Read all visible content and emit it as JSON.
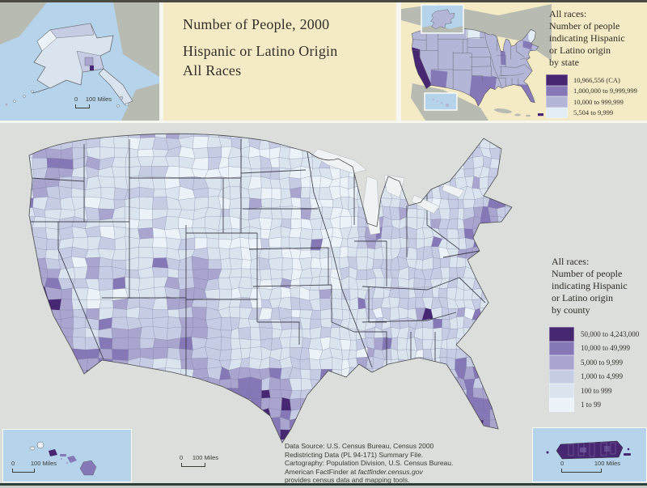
{
  "title": {
    "line1": "Number of People, 2000",
    "line2": "Hispanic or Latino Origin",
    "line3": "All Races"
  },
  "state_legend": {
    "title": "All races:\nNumber of people\nindicating Hispanic\nor Latino origin\nby state",
    "items": [
      {
        "label": "10,966,556 (CA)",
        "color": "#472672"
      },
      {
        "label": "1,000,000 to 9,999,999",
        "color": "#8678b6"
      },
      {
        "label": "10,000 to 999,999",
        "color": "#b4b6d7"
      },
      {
        "label": "5,504 to 9,999",
        "color": "#e2edf5"
      }
    ]
  },
  "county_legend": {
    "title": "All races:\nNumber of people\nindicating Hispanic\nor Latino origin\nby county",
    "items": [
      {
        "label": "50,000 to 4,243,000",
        "color": "#472672"
      },
      {
        "label": "10,000 to 49,999",
        "color": "#8678b6"
      },
      {
        "label": "5,000 to 9,999",
        "color": "#a9a5ce"
      },
      {
        "label": "1,000 to 4,999",
        "color": "#c5cce3"
      },
      {
        "label": "100 to 999",
        "color": "#dae4ef"
      },
      {
        "label": "1 to 99",
        "color": "#ecf3f8"
      }
    ]
  },
  "scale": {
    "zero": "0",
    "miles": "100 Miles"
  },
  "source": {
    "line1": "Data Source: U.S. Census Bureau, Census 2000",
    "line2": "Redistricting Data (PL 94-171) Summary File.",
    "line3": "Cartography: Population Division, U.S. Census Bureau.",
    "line4_pre": "American FactFinder at ",
    "line4_italic": "factfinder.census.gov",
    "line5": "provides census data and mapping tools."
  },
  "colors": {
    "panel_cream": "#f4ebc6",
    "map_background": "#dcdedb",
    "water_blue": "#b5d3ea",
    "foreign_land_gray": "#b7bbb1",
    "ink": "#33302a"
  }
}
